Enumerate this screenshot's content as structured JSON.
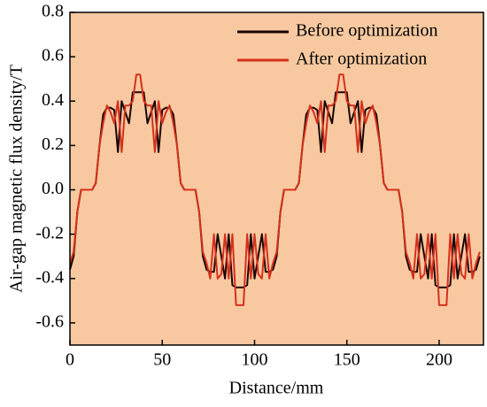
{
  "chart_data": {
    "type": "line",
    "xlabel": "Distance/mm",
    "ylabel": "Air-gap magnetic flux density/T",
    "xlim": [
      0,
      224
    ],
    "ylim": [
      -0.7,
      0.8
    ],
    "xticks": [
      0,
      50,
      100,
      150,
      200
    ],
    "yticks": [
      0.8,
      0.6,
      0.4,
      0.2,
      {
        "value": 0,
        "label": "0.0"
      },
      -0.2,
      -0.4,
      -0.6
    ],
    "legend": "upper right",
    "background": "#f8c9a0",
    "x": [
      0,
      2,
      4,
      6,
      8,
      10,
      12,
      14,
      16,
      18,
      20,
      22,
      24,
      26,
      28,
      30,
      32,
      34,
      36,
      38,
      40,
      42,
      44,
      46,
      48,
      50,
      52,
      54,
      56,
      58,
      60,
      62,
      64,
      66,
      68,
      70,
      72,
      74,
      76,
      78,
      80,
      82,
      84,
      86,
      88,
      90,
      92,
      94,
      96,
      98,
      100,
      102,
      104,
      106,
      108,
      110,
      112,
      114,
      116,
      118,
      120,
      122,
      124,
      126,
      128,
      130,
      132,
      134,
      136,
      138,
      140,
      142,
      144,
      146,
      148,
      150,
      152,
      154,
      156,
      158,
      160,
      162,
      164,
      166,
      168,
      170,
      172,
      174,
      176,
      178,
      180,
      182,
      184,
      186,
      188,
      190,
      192,
      194,
      196,
      198,
      200,
      202,
      204,
      206,
      208,
      210,
      212,
      214,
      216,
      218,
      220,
      222
    ],
    "series": [
      {
        "name": "Before optimization",
        "color": "#1a0505",
        "values": [
          -0.36,
          -0.3,
          -0.1,
          0,
          0,
          0,
          0,
          0.03,
          0.2,
          0.34,
          0.37,
          0.37,
          0.36,
          0.17,
          0.4,
          0.35,
          0.3,
          0.44,
          0.44,
          0.44,
          0.44,
          0.3,
          0.35,
          0.4,
          0.17,
          0.36,
          0.37,
          0.37,
          0.34,
          0.2,
          0.03,
          0,
          0,
          0,
          0,
          -0.1,
          -0.3,
          -0.36,
          -0.37,
          -0.37,
          -0.2,
          -0.3,
          -0.4,
          -0.2,
          -0.43,
          -0.44,
          -0.44,
          -0.44,
          -0.43,
          -0.2,
          -0.4,
          -0.3,
          -0.2,
          -0.37,
          -0.37,
          -0.36,
          -0.3,
          -0.1,
          0,
          0,
          0,
          0,
          0.03,
          0.2,
          0.34,
          0.37,
          0.37,
          0.36,
          0.17,
          0.4,
          0.35,
          0.3,
          0.44,
          0.44,
          0.44,
          0.44,
          0.3,
          0.35,
          0.4,
          0.17,
          0.36,
          0.37,
          0.37,
          0.34,
          0.2,
          0.03,
          0,
          0,
          0,
          0,
          -0.1,
          -0.3,
          -0.36,
          -0.37,
          -0.37,
          -0.2,
          -0.3,
          -0.4,
          -0.2,
          -0.43,
          -0.44,
          -0.44,
          -0.44,
          -0.43,
          -0.2,
          -0.4,
          -0.3,
          -0.2,
          -0.37,
          -0.37,
          -0.36,
          -0.3
        ]
      },
      {
        "name": "After optimization",
        "color": "#d6301c",
        "values": [
          -0.33,
          -0.28,
          -0.1,
          0,
          0,
          0,
          0,
          0.03,
          0.2,
          0.3,
          0.38,
          0.35,
          0.3,
          0.4,
          0.17,
          0.38,
          0.38,
          0.4,
          0.52,
          0.52,
          0.4,
          0.38,
          0.38,
          0.17,
          0.4,
          0.3,
          0.35,
          0.38,
          0.3,
          0.2,
          0.03,
          0,
          0,
          0,
          0,
          -0.1,
          -0.28,
          -0.33,
          -0.4,
          -0.2,
          -0.4,
          -0.38,
          -0.2,
          -0.4,
          -0.2,
          -0.52,
          -0.52,
          -0.52,
          -0.2,
          -0.4,
          -0.2,
          -0.38,
          -0.4,
          -0.2,
          -0.4,
          -0.33,
          -0.28,
          -0.1,
          0,
          0,
          0,
          0,
          0.03,
          0.2,
          0.3,
          0.38,
          0.35,
          0.3,
          0.4,
          0.17,
          0.38,
          0.38,
          0.4,
          0.52,
          0.52,
          0.4,
          0.38,
          0.38,
          0.17,
          0.4,
          0.3,
          0.35,
          0.38,
          0.3,
          0.2,
          0.03,
          0,
          0,
          0,
          0,
          -0.1,
          -0.28,
          -0.33,
          -0.4,
          -0.2,
          -0.4,
          -0.38,
          -0.2,
          -0.4,
          -0.2,
          -0.52,
          -0.52,
          -0.52,
          -0.2,
          -0.4,
          -0.2,
          -0.38,
          -0.4,
          -0.2,
          -0.4,
          -0.33,
          -0.28
        ]
      }
    ]
  }
}
